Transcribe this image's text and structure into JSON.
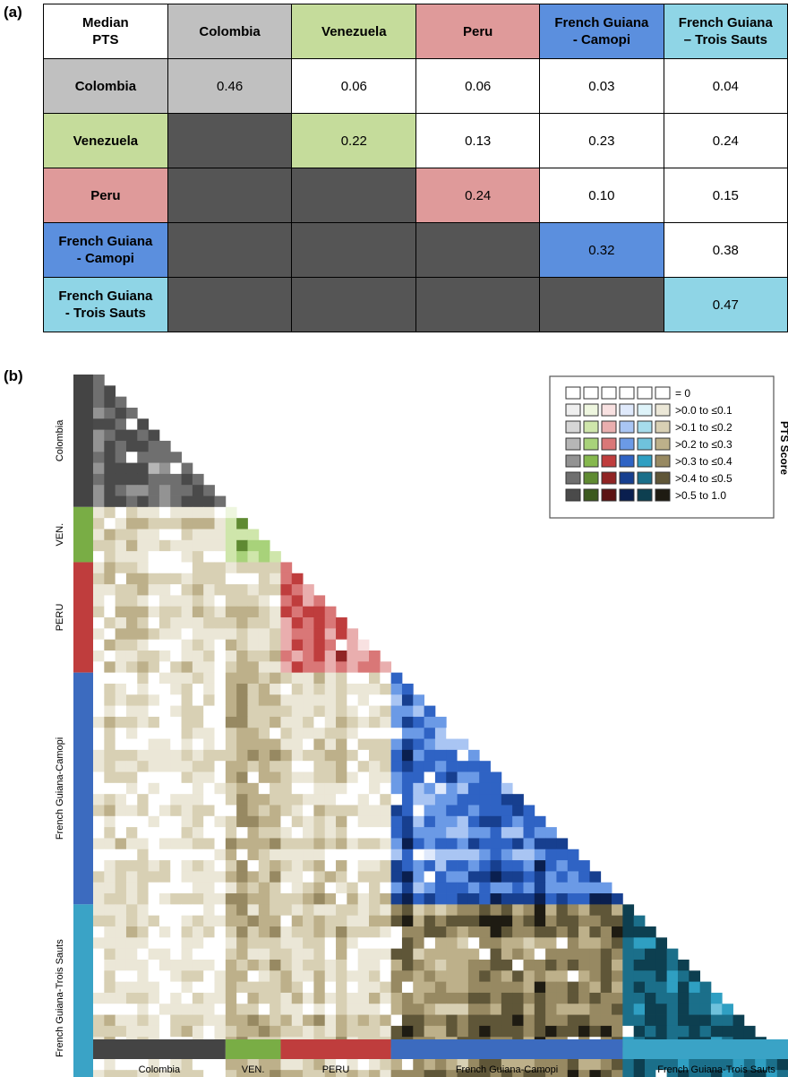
{
  "panels": {
    "a_label": "(a)",
    "b_label": "(b)"
  },
  "table": {
    "corner_label": "Median\nPTS",
    "columns": [
      "Colombia",
      "Venezuela",
      "Peru",
      "French Guiana\n- Camopi",
      "French Guiana\n– Trois Sauts"
    ],
    "rows": [
      {
        "label": "Colombia",
        "cells": [
          "0.46",
          "0.06",
          "0.06",
          "0.03",
          "0.04"
        ]
      },
      {
        "label": "Venezuela",
        "cells": [
          "",
          "0.22",
          "0.13",
          "0.23",
          "0.24"
        ]
      },
      {
        "label": "Peru",
        "cells": [
          "",
          "",
          "0.24",
          "0.10",
          "0.15"
        ]
      },
      {
        "label": "French Guiana\n- Camopi",
        "cells": [
          "",
          "",
          "",
          "0.32",
          "0.38"
        ]
      },
      {
        "label": "French Guiana\n- Trois Sauts",
        "cells": [
          "",
          "",
          "",
          "",
          "0.47"
        ]
      }
    ],
    "colors": {
      "Colombia": "#c0c0c0",
      "Venezuela": "#c5dc9b",
      "Peru": "#df9a9a",
      "Camopi": "#5b8fde",
      "TroisSauts": "#8fd5e6",
      "masked": "#555555",
      "blank": "#ffffff"
    }
  },
  "chart_data": {
    "type": "heatmap",
    "legend_title": "PTS Score",
    "legend_bins": [
      "= 0",
      ">0.0 to ≤0.1",
      ">0.1 to ≤0.2",
      ">0.2 to ≤0.3",
      ">0.3 to ≤0.4",
      ">0.4 to ≤0.5",
      ">0.5 to 1.0"
    ],
    "groups": [
      {
        "name": "Colombia",
        "axis_label": "Colombia",
        "n": 12,
        "color": "#444444",
        "palette": [
          "#ffffff",
          "#efefef",
          "#d6d6d6",
          "#b6b6b6",
          "#939393",
          "#6f6f6f",
          "#4a4a4a"
        ]
      },
      {
        "name": "Venezuela",
        "axis_label": "VEN.",
        "n": 5,
        "color": "#79ad45",
        "palette": [
          "#ffffff",
          "#eef6df",
          "#cfe6ab",
          "#a8d27a",
          "#86b84e",
          "#5f8a32",
          "#3c5a1e"
        ]
      },
      {
        "name": "Peru",
        "axis_label": "PERU",
        "n": 10,
        "color": "#bf3d3d",
        "palette": [
          "#ffffff",
          "#f8e1e1",
          "#e9aeae",
          "#d97777",
          "#bf3d3d",
          "#902424",
          "#5c1212"
        ]
      },
      {
        "name": "Camopi",
        "axis_label": "French Guiana-Camopi",
        "n": 21,
        "color": "#3c6bbf",
        "palette": [
          "#ffffff",
          "#dfe9fb",
          "#a9c5f3",
          "#6b9ae6",
          "#2f63c4",
          "#173f8f",
          "#0a1f4f"
        ]
      },
      {
        "name": "TroisSauts",
        "axis_label": "French Guiana-Trois Sauts",
        "n": 17,
        "color": "#3aa3c6",
        "palette": [
          "#ffffff",
          "#def3f9",
          "#a6dcec",
          "#6fc2dc",
          "#2f9fc2",
          "#1b6f8a",
          "#0d3f50"
        ]
      }
    ],
    "between_palette": [
      "#ffffff",
      "#ebe7d7",
      "#d8d0b4",
      "#bdb08a",
      "#978962",
      "#5f5638",
      "#1e1b12"
    ],
    "median_pts": [
      [
        0.46,
        0.06,
        0.06,
        0.03,
        0.04
      ],
      [
        null,
        0.22,
        0.13,
        0.23,
        0.24
      ],
      [
        null,
        null,
        0.24,
        0.1,
        0.15
      ],
      [
        null,
        null,
        null,
        0.32,
        0.38
      ],
      [
        null,
        null,
        null,
        null,
        0.47
      ]
    ]
  }
}
